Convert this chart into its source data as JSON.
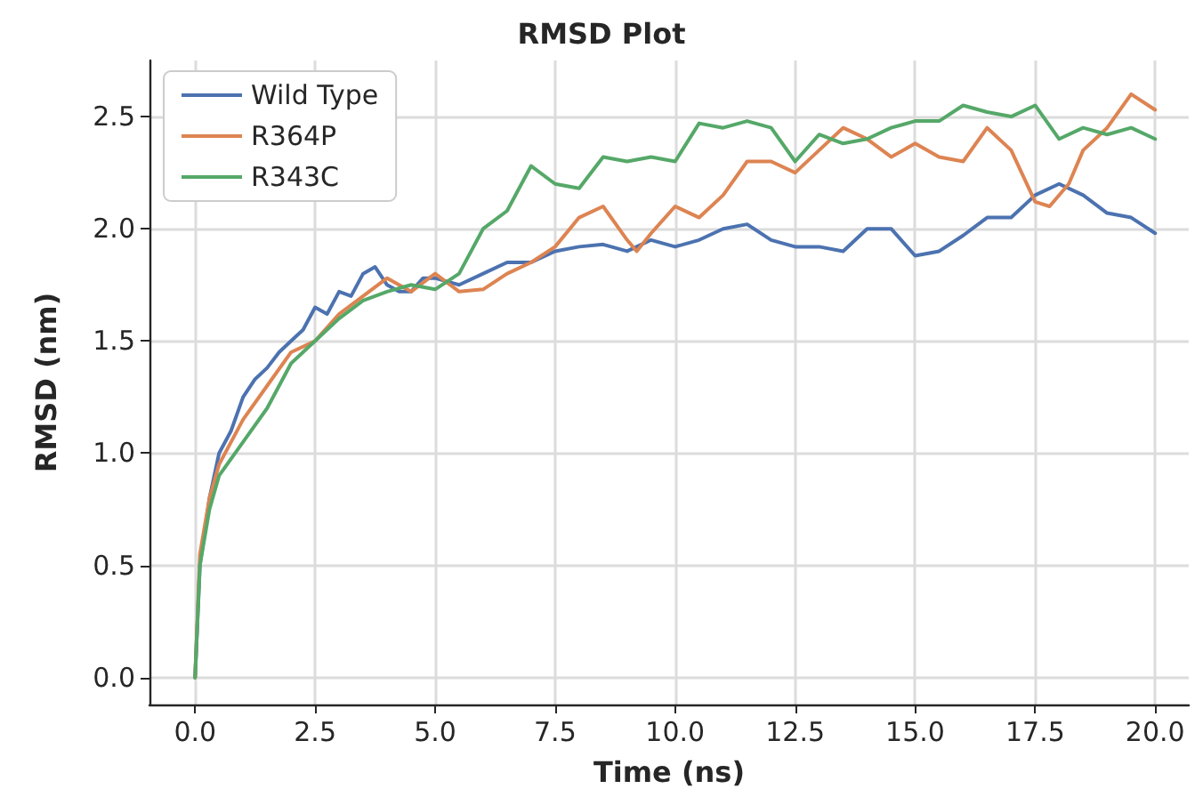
{
  "chart_data": {
    "type": "line",
    "title": "RMSD Plot",
    "xlabel": "Time (ns)",
    "ylabel": "RMSD (nm)",
    "xlim": [
      -0.95,
      20.7
    ],
    "xticks": [
      {
        "value": 0,
        "label": "0.0"
      },
      {
        "value": 2.5,
        "label": "2.5"
      },
      {
        "value": 5,
        "label": "5.0"
      },
      {
        "value": 7.5,
        "label": "7.5"
      },
      {
        "value": 10,
        "label": "10.0"
      },
      {
        "value": 12.5,
        "label": "12.5"
      },
      {
        "value": 15,
        "label": "15.0"
      },
      {
        "value": 17.5,
        "label": "17.5"
      },
      {
        "value": 20,
        "label": "20.0"
      }
    ],
    "ylim": [
      -0.12,
      2.75
    ],
    "yticks": [
      {
        "value": 0,
        "label": "0.0"
      },
      {
        "value": 0.5,
        "label": "0.5"
      },
      {
        "value": 1,
        "label": "1.0"
      },
      {
        "value": 1.5,
        "label": "1.5"
      },
      {
        "value": 2,
        "label": "2.0"
      },
      {
        "value": 2.5,
        "label": "2.5"
      }
    ],
    "grid": true,
    "legend": "top left",
    "marker": "none",
    "line_style": "solid",
    "series": [
      {
        "name": "Wild Type",
        "color": "#4c72b0",
        "x": [
          0,
          0.1,
          0.3,
          0.5,
          0.75,
          1,
          1.25,
          1.5,
          1.75,
          2,
          2.25,
          2.5,
          2.75,
          3,
          3.25,
          3.5,
          3.75,
          4,
          4.25,
          4.5,
          4.75,
          5,
          5.5,
          6,
          6.5,
          7,
          7.5,
          8,
          8.5,
          9,
          9.5,
          10,
          10.5,
          11,
          11.5,
          12,
          12.5,
          13,
          13.5,
          14,
          14.5,
          15,
          15.5,
          16,
          16.5,
          17,
          17.5,
          18,
          18.5,
          19,
          19.5,
          20
        ],
        "values": [
          0,
          0.5,
          0.8,
          1.0,
          1.1,
          1.25,
          1.33,
          1.38,
          1.45,
          1.5,
          1.55,
          1.65,
          1.62,
          1.72,
          1.7,
          1.8,
          1.83,
          1.75,
          1.72,
          1.72,
          1.78,
          1.78,
          1.75,
          1.8,
          1.85,
          1.85,
          1.9,
          1.92,
          1.93,
          1.9,
          1.95,
          1.92,
          1.95,
          2.0,
          2.02,
          1.95,
          1.92,
          1.92,
          1.9,
          2.0,
          2.0,
          1.88,
          1.9,
          1.97,
          2.05,
          2.05,
          2.15,
          2.2,
          2.15,
          2.07,
          2.05,
          1.98
        ]
      },
      {
        "name": "R364P",
        "color": "#dd8452",
        "x": [
          0,
          0.1,
          0.3,
          0.5,
          0.75,
          1,
          1.5,
          2,
          2.5,
          3,
          3.5,
          4,
          4.5,
          5,
          5.5,
          6,
          6.5,
          7,
          7.5,
          8,
          8.5,
          9,
          9.2,
          9.5,
          10,
          10.5,
          11,
          11.5,
          12,
          12.5,
          13,
          13.5,
          14,
          14.5,
          15,
          15.5,
          16,
          16.5,
          17,
          17.5,
          17.8,
          18.2,
          18.5,
          19,
          19.5,
          20
        ],
        "values": [
          0,
          0.55,
          0.8,
          0.95,
          1.05,
          1.15,
          1.3,
          1.45,
          1.5,
          1.62,
          1.7,
          1.78,
          1.72,
          1.8,
          1.72,
          1.73,
          1.8,
          1.85,
          1.92,
          2.05,
          2.1,
          1.95,
          1.9,
          1.98,
          2.1,
          2.05,
          2.15,
          2.3,
          2.3,
          2.25,
          2.35,
          2.45,
          2.4,
          2.32,
          2.38,
          2.32,
          2.3,
          2.45,
          2.35,
          2.12,
          2.1,
          2.2,
          2.35,
          2.45,
          2.6,
          2.53
        ]
      },
      {
        "name": "R343C",
        "color": "#55a868",
        "x": [
          0,
          0.1,
          0.3,
          0.5,
          1,
          1.5,
          2,
          2.5,
          3,
          3.5,
          4,
          4.5,
          5,
          5.5,
          6,
          6.5,
          7,
          7.5,
          8,
          8.5,
          9,
          9.5,
          10,
          10.5,
          11,
          11.5,
          12,
          12.5,
          13,
          13.5,
          14,
          14.5,
          15,
          15.5,
          16,
          16.5,
          17,
          17.5,
          18,
          18.5,
          19,
          19.5,
          20
        ],
        "values": [
          0,
          0.5,
          0.75,
          0.9,
          1.05,
          1.2,
          1.4,
          1.5,
          1.6,
          1.68,
          1.72,
          1.75,
          1.73,
          1.8,
          2.0,
          2.08,
          2.28,
          2.2,
          2.18,
          2.32,
          2.3,
          2.32,
          2.3,
          2.47,
          2.45,
          2.48,
          2.45,
          2.3,
          2.42,
          2.38,
          2.4,
          2.45,
          2.48,
          2.48,
          2.55,
          2.52,
          2.5,
          2.55,
          2.4,
          2.45,
          2.42,
          2.45,
          2.4
        ]
      }
    ]
  }
}
